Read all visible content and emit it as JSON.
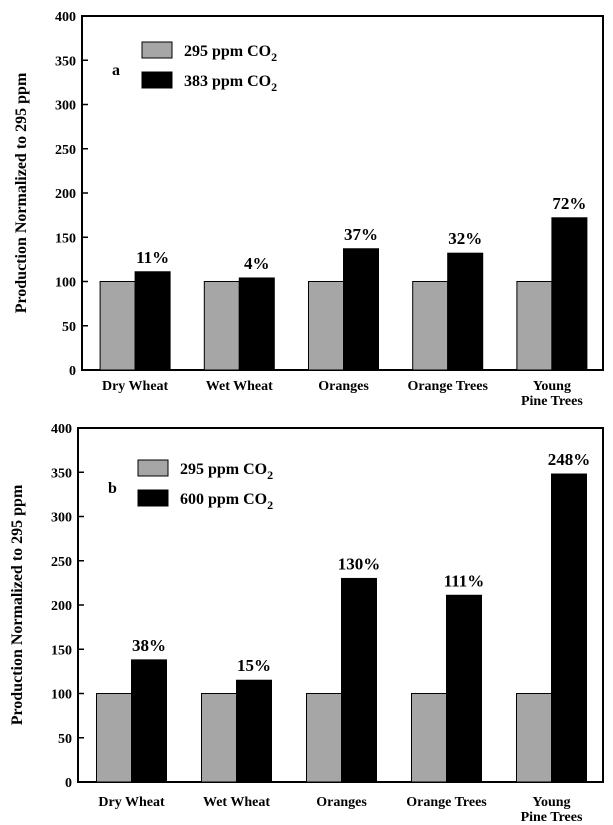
{
  "chart_data": [
    {
      "type": "bar",
      "panel_label": "a",
      "ylabel": "Production Normalized to 295 ppm",
      "xlabel": "",
      "ylim": [
        0,
        400
      ],
      "yticks": [
        0,
        50,
        100,
        150,
        200,
        250,
        300,
        350,
        400
      ],
      "categories": [
        [
          "Dry Wheat"
        ],
        [
          "Wet Wheat"
        ],
        [
          "Oranges"
        ],
        [
          "Orange Trees"
        ],
        [
          "Young",
          "Pine Trees"
        ]
      ],
      "series": [
        {
          "name": "295 ppm CO",
          "subscript": "2",
          "color": "#a6a6a6",
          "values": [
            100,
            100,
            100,
            100,
            100
          ]
        },
        {
          "name": "383 ppm CO",
          "subscript": "2",
          "color": "#000000",
          "values": [
            111,
            104,
            137,
            132,
            172
          ]
        }
      ],
      "annotations": [
        "11%",
        "4%",
        "37%",
        "32%",
        "72%"
      ],
      "legend_position": "top-left",
      "grid": false
    },
    {
      "type": "bar",
      "panel_label": "b",
      "ylabel": "Production Normalized to 295 ppm",
      "xlabel": "",
      "ylim": [
        0,
        400
      ],
      "yticks": [
        0,
        50,
        100,
        150,
        200,
        250,
        300,
        350,
        400
      ],
      "categories": [
        [
          "Dry Wheat"
        ],
        [
          "Wet Wheat"
        ],
        [
          "Oranges"
        ],
        [
          "Orange Trees"
        ],
        [
          "Young",
          "Pine Trees"
        ]
      ],
      "series": [
        {
          "name": "295 ppm CO",
          "subscript": "2",
          "color": "#a6a6a6",
          "values": [
            100,
            100,
            100,
            100,
            100
          ]
        },
        {
          "name": "600 ppm CO",
          "subscript": "2",
          "color": "#000000",
          "values": [
            138,
            115,
            230,
            211,
            348
          ]
        }
      ],
      "annotations": [
        "38%",
        "15%",
        "130%",
        "111%",
        "248%"
      ],
      "legend_position": "top-left",
      "grid": false
    }
  ]
}
